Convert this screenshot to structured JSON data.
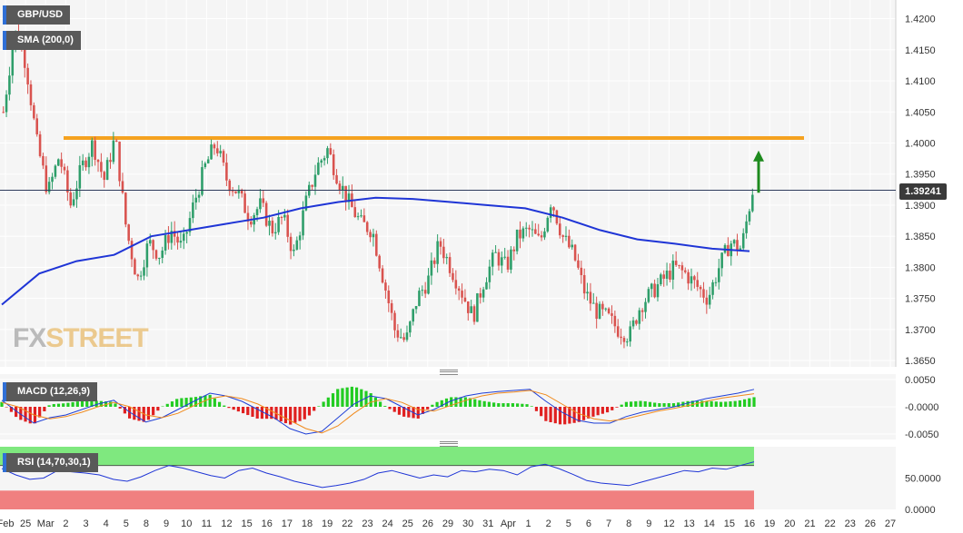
{
  "chart_data": [
    {
      "type": "candlestick",
      "name": "GBP/USD",
      "overlay_label": "SMA (200,0)",
      "ylim": [
        1.364,
        1.423
      ],
      "y_ticks": [
        "1.4200",
        "1.4150",
        "1.4100",
        "1.4050",
        "1.4000",
        "1.3950",
        "1.3900",
        "1.3850",
        "1.3800",
        "1.3750",
        "1.3700",
        "1.3650"
      ],
      "x_ticks": [
        "Feb",
        "25",
        "Mar",
        "2",
        "3",
        "4",
        "5",
        "8",
        "9",
        "10",
        "11",
        "12",
        "15",
        "16",
        "17",
        "18",
        "19",
        "22",
        "23",
        "24",
        "25",
        "26",
        "29",
        "30",
        "31",
        "Apr",
        "1",
        "2",
        "5",
        "6",
        "7",
        "8",
        "9",
        "12",
        "13",
        "14",
        "15",
        "16",
        "19",
        "20",
        "21",
        "22",
        "23",
        "26",
        "27"
      ],
      "last_price": "1.39241",
      "resistance_level": 1.4008,
      "price_path": [
        1.405,
        1.418,
        1.413,
        1.4,
        1.392,
        1.398,
        1.39,
        1.396,
        1.4,
        1.394,
        1.401,
        1.386,
        1.378,
        1.384,
        1.382,
        1.386,
        1.383,
        1.39,
        1.396,
        1.4,
        1.394,
        1.392,
        1.388,
        1.39,
        1.386,
        1.388,
        1.382,
        1.39,
        1.396,
        1.399,
        1.394,
        1.39,
        1.387,
        1.386,
        1.378,
        1.37,
        1.368,
        1.375,
        1.378,
        1.384,
        1.38,
        1.376,
        1.372,
        1.378,
        1.382,
        1.38,
        1.385,
        1.386,
        1.384,
        1.391,
        1.385,
        1.382,
        1.376,
        1.373,
        1.372,
        1.37,
        1.369,
        1.374,
        1.376,
        1.378,
        1.38,
        1.379,
        1.377,
        1.375,
        1.38,
        1.384,
        1.383,
        1.3924
      ],
      "sma_path": [
        1.374,
        1.379,
        1.381,
        1.382,
        1.385,
        1.386,
        1.387,
        1.388,
        1.3895,
        1.3905,
        1.3912,
        1.391,
        1.3905,
        1.39,
        1.3895,
        1.388,
        1.386,
        1.3845,
        1.3838,
        1.383,
        1.3826
      ],
      "target_arrow": {
        "from": 1.392,
        "to": 1.3985,
        "color": "#1d8a1d"
      },
      "colors": {
        "up": "#2e9e6a",
        "down": "#d9534f",
        "sma": "#1f35d6",
        "resistance": "#f5a21f",
        "background": "#f5f5f5",
        "grid": "#ffffff"
      }
    },
    {
      "type": "macd",
      "label": "MACD (12,26,9)",
      "ylim": [
        -0.006,
        0.006
      ],
      "y_ticks": [
        "0.0050",
        "-0.0000",
        "-0.0050"
      ],
      "macd": [
        0.0012,
        -0.001,
        -0.003,
        -0.002,
        -0.0015,
        -0.0005,
        0.0005,
        0.0012,
        -0.001,
        -0.0028,
        -0.002,
        -0.0005,
        0.001,
        0.0025,
        0.002,
        0.001,
        -0.0005,
        -0.002,
        -0.004,
        -0.005,
        -0.0045,
        -0.002,
        0.0005,
        0.002,
        0.0015,
        0.0,
        -0.0015,
        -0.0005,
        0.001,
        0.002,
        0.0025,
        0.0028,
        0.003,
        0.0032,
        0.001,
        -0.001,
        -0.0025,
        -0.003,
        -0.003,
        -0.0018,
        -0.001,
        -0.0005,
        0.0,
        0.0008,
        0.0015,
        0.002,
        0.0025,
        0.0032
      ],
      "signal": [
        0.0008,
        0.0,
        -0.0015,
        -0.0022,
        -0.0018,
        -0.001,
        0.0,
        0.0008,
        0.0,
        -0.0015,
        -0.002,
        -0.0012,
        0.0002,
        0.0015,
        0.002,
        0.0015,
        0.0005,
        -0.001,
        -0.0025,
        -0.004,
        -0.0048,
        -0.0035,
        -0.0012,
        0.0008,
        0.0015,
        0.0008,
        -0.0005,
        -0.0008,
        0.0002,
        0.0012,
        0.002,
        0.0025,
        0.0027,
        0.003,
        0.0022,
        0.0005,
        -0.0012,
        -0.0022,
        -0.0026,
        -0.0022,
        -0.0015,
        -0.0008,
        -0.0003,
        0.0003,
        0.001,
        0.0016,
        0.002,
        0.0024
      ],
      "colors": {
        "macd": "#1f3fd6",
        "signal": "#f08a1c",
        "hist_up": "#22cc22",
        "hist_down": "#e01f1f"
      }
    },
    {
      "type": "rsi",
      "label": "RSI (14,70,30,1)",
      "ylim": [
        0,
        100
      ],
      "y_ticks": [
        "50.0000",
        "0.0000"
      ],
      "overbought": 70,
      "oversold": 30,
      "values": [
        65,
        55,
        48,
        50,
        62,
        60,
        58,
        55,
        48,
        45,
        52,
        62,
        70,
        66,
        60,
        54,
        50,
        62,
        66,
        58,
        52,
        45,
        40,
        35,
        38,
        42,
        48,
        58,
        62,
        56,
        50,
        55,
        52,
        62,
        60,
        64,
        62,
        55,
        68,
        72,
        65,
        56,
        46,
        42,
        40,
        38,
        44,
        50,
        56,
        62,
        60,
        66,
        64,
        70,
        76
      ],
      "colors": {
        "line": "#1f35d6",
        "overbought_zone": "#7fe87f",
        "oversold_zone": "#f08080"
      }
    }
  ]
}
